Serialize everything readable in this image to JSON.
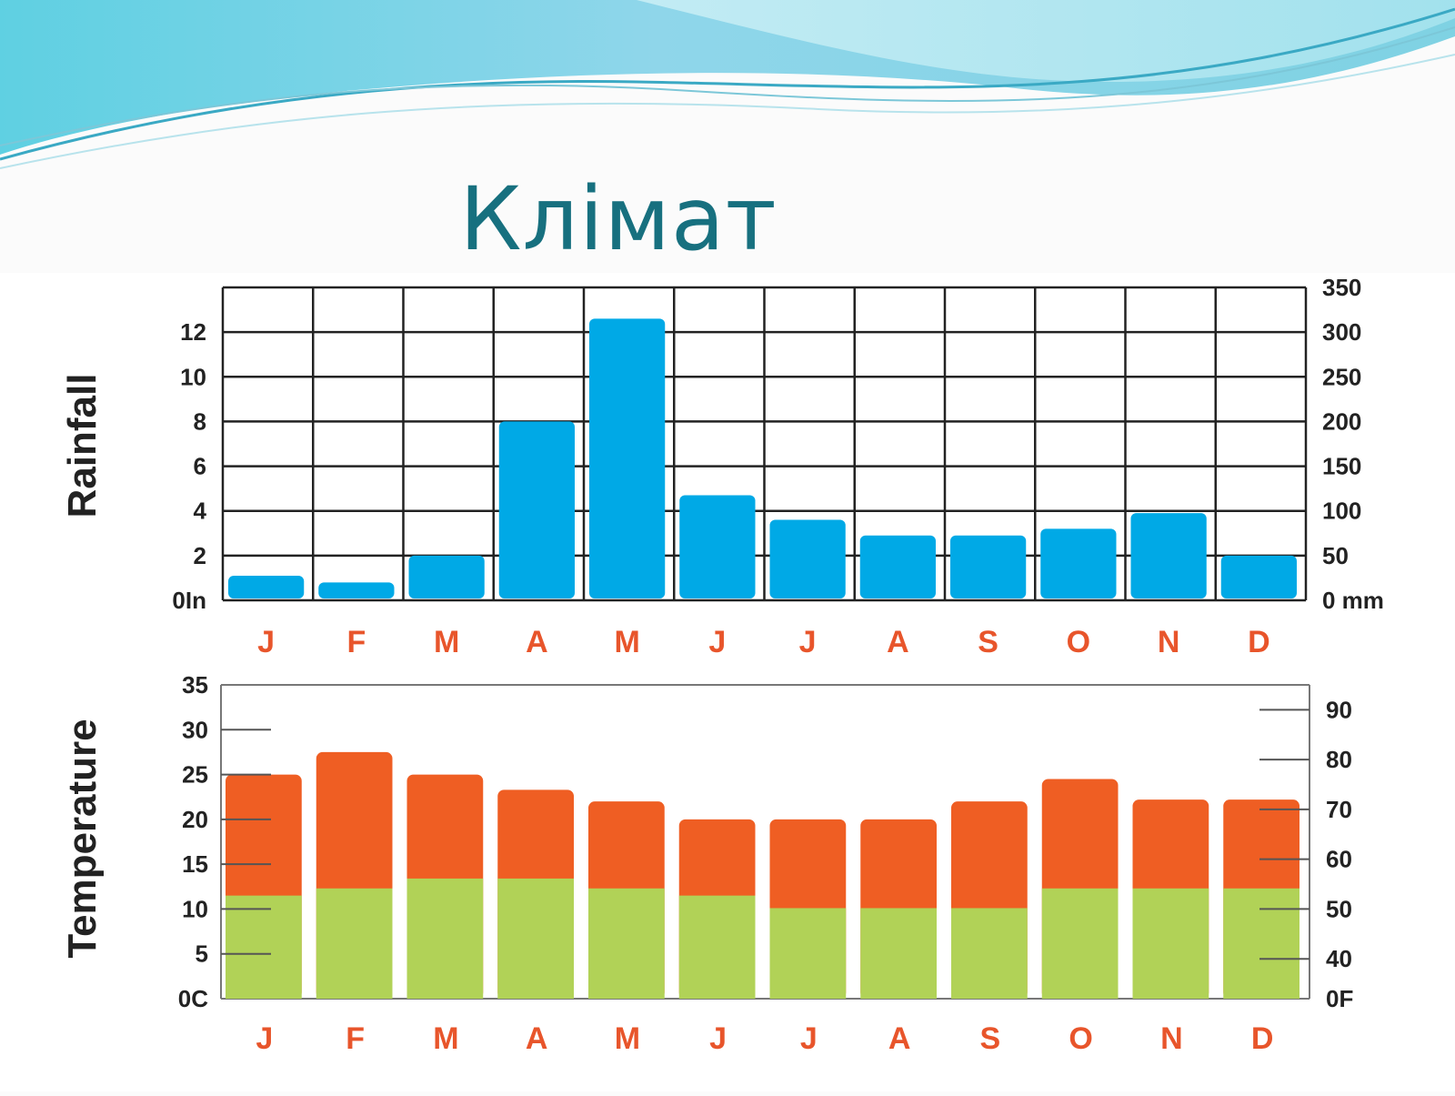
{
  "slide": {
    "title": "Клімат",
    "colors": {
      "title": "#17707f",
      "wave_dark": "#2aa7c9",
      "wave_light": "#9fe0ea"
    }
  },
  "chart_data": [
    {
      "type": "bar",
      "ylabel": "Rainfall",
      "categories": [
        "J",
        "F",
        "M",
        "A",
        "M",
        "J",
        "J",
        "A",
        "S",
        "O",
        "N",
        "D"
      ],
      "values": [
        1.1,
        0.8,
        2.0,
        8.0,
        12.6,
        4.7,
        3.6,
        2.9,
        2.9,
        3.2,
        3.9,
        2.0
      ],
      "unit_left": "in",
      "ylim": [
        0,
        14
      ],
      "left_ticks": [
        "0In",
        "2",
        "4",
        "6",
        "8",
        "10",
        "12"
      ],
      "right_ticks": [
        "0 mm",
        "50",
        "100",
        "150",
        "200",
        "250",
        "300",
        "350"
      ],
      "right_ylim": [
        0,
        350
      ],
      "grid": true,
      "colors": {
        "bar": "#00a9e6",
        "grid": "#222222",
        "month_labels": "#e8552b"
      }
    },
    {
      "type": "bar",
      "ylabel": "Temperature",
      "categories": [
        "J",
        "F",
        "M",
        "A",
        "M",
        "J",
        "J",
        "A",
        "S",
        "O",
        "N",
        "D"
      ],
      "series": [
        {
          "values": [
            11.5,
            12.3,
            13.4,
            13.4,
            12.3,
            11.5,
            10.1,
            10.1,
            10.1,
            12.3,
            12.3,
            12.3
          ]
        },
        {
          "values": [
            25.0,
            27.5,
            25.0,
            23.3,
            22.0,
            20.0,
            20.0,
            20.0,
            22.0,
            24.5,
            22.2,
            22.2
          ]
        }
      ],
      "ylim": [
        0,
        35
      ],
      "left_ticks": [
        "0C",
        "5",
        "10",
        "15",
        "20",
        "25",
        "30",
        "35"
      ],
      "right_ticks": [
        "0F",
        "40",
        "50",
        "60",
        "70",
        "80",
        "90"
      ],
      "grid": false,
      "colors": {
        "low": "#b1d257",
        "high": "#ef5e23",
        "month_labels": "#e8552b"
      }
    }
  ]
}
